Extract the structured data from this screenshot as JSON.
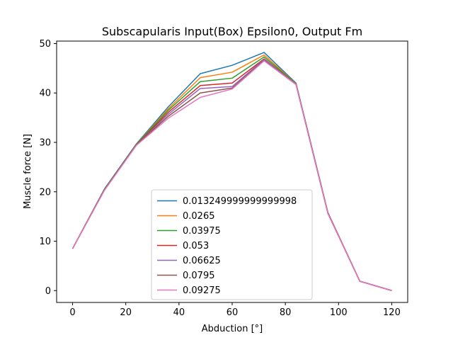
{
  "chart_data": {
    "type": "line",
    "title": "Subscapularis Input(Box) Epsilon0, Output Fm",
    "xlabel": "Abduction [°]",
    "ylabel": "Muscle force [N]",
    "xlim": [
      -6,
      126
    ],
    "ylim": [
      -2.4,
      50.5
    ],
    "xticks": [
      0,
      20,
      40,
      60,
      80,
      100,
      120
    ],
    "yticks": [
      0,
      10,
      20,
      30,
      40,
      50
    ],
    "grid": false,
    "legend_position": "lower center",
    "x": [
      0,
      12,
      24,
      36,
      48,
      60,
      72,
      84,
      96,
      108,
      120
    ],
    "series": [
      {
        "name": "0.013249999999999998",
        "color": "#1f77b4",
        "values": [
          8.5,
          20.6,
          29.7,
          37.2,
          43.9,
          45.6,
          48.2,
          42.0,
          15.8,
          1.9,
          0.0
        ]
      },
      {
        "name": "0.0265",
        "color": "#ff7f0e",
        "values": [
          8.5,
          20.5,
          29.6,
          36.8,
          43.1,
          44.2,
          47.7,
          41.9,
          15.7,
          1.9,
          0.0
        ]
      },
      {
        "name": "0.03975",
        "color": "#2ca02c",
        "values": [
          8.5,
          20.5,
          29.6,
          36.5,
          42.3,
          43.0,
          47.3,
          41.9,
          15.7,
          1.9,
          0.0
        ]
      },
      {
        "name": "0.053",
        "color": "#d62728",
        "values": [
          8.5,
          20.4,
          29.5,
          36.1,
          41.5,
          42.0,
          46.9,
          41.8,
          15.7,
          1.9,
          0.0
        ]
      },
      {
        "name": "0.06625",
        "color": "#9467bd",
        "values": [
          8.5,
          20.4,
          29.5,
          35.7,
          40.9,
          41.3,
          46.8,
          41.8,
          15.6,
          1.9,
          0.0
        ]
      },
      {
        "name": "0.0795",
        "color": "#8c564b",
        "values": [
          8.5,
          20.4,
          29.5,
          35.3,
          40.0,
          41.0,
          46.6,
          41.7,
          15.6,
          1.9,
          0.0
        ]
      },
      {
        "name": "0.09275",
        "color": "#e377c2",
        "values": [
          8.5,
          20.3,
          29.4,
          34.9,
          39.1,
          40.8,
          46.5,
          41.7,
          15.6,
          1.9,
          0.0
        ]
      }
    ]
  }
}
